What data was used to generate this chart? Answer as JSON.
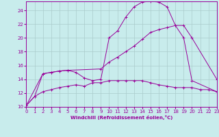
{
  "xlabel": "Windchill (Refroidissement éolien,°C)",
  "bg_color": "#c8ecec",
  "line_color": "#990099",
  "grid_color": "#b0c8c8",
  "xmin": 0,
  "xmax": 23,
  "ymin": 10,
  "ymax": 25,
  "yticks": [
    10,
    12,
    14,
    16,
    18,
    20,
    22,
    24
  ],
  "xticks": [
    0,
    1,
    2,
    3,
    4,
    5,
    6,
    7,
    8,
    9,
    10,
    11,
    12,
    13,
    14,
    15,
    16,
    17,
    18,
    19,
    20,
    21,
    22,
    23
  ],
  "line1_x": [
    0,
    1,
    2,
    3,
    4,
    5,
    6,
    7,
    8,
    9,
    10,
    11,
    12,
    13,
    14,
    15,
    16,
    17,
    18,
    19,
    20,
    21,
    22,
    23
  ],
  "line1_y": [
    10.2,
    11.5,
    12.2,
    12.5,
    12.8,
    13.0,
    13.2,
    13.0,
    13.5,
    13.5,
    13.8,
    13.8,
    13.8,
    13.8,
    13.8,
    13.5,
    13.2,
    13.0,
    12.8,
    12.8,
    12.8,
    12.5,
    12.5,
    12.2
  ],
  "line2_x": [
    0,
    1,
    2,
    3,
    4,
    5,
    6,
    7,
    8,
    9,
    10,
    11,
    12,
    13,
    14,
    15,
    16,
    17,
    18,
    19,
    20,
    23
  ],
  "line2_y": [
    10.2,
    11.5,
    14.8,
    15.0,
    15.2,
    15.3,
    15.0,
    14.2,
    13.8,
    14.0,
    20.0,
    21.0,
    23.0,
    24.5,
    25.2,
    25.3,
    25.2,
    24.5,
    21.8,
    20.0,
    13.8,
    12.2
  ],
  "line3_x": [
    0,
    2,
    3,
    4,
    5,
    9,
    10,
    11,
    12,
    13,
    14,
    15,
    16,
    17,
    18,
    19,
    20,
    23
  ],
  "line3_y": [
    10.2,
    14.8,
    15.0,
    15.2,
    15.3,
    15.5,
    16.5,
    17.2,
    18.0,
    18.8,
    19.8,
    20.8,
    21.2,
    21.5,
    21.8,
    21.8,
    20.0,
    14.0
  ]
}
